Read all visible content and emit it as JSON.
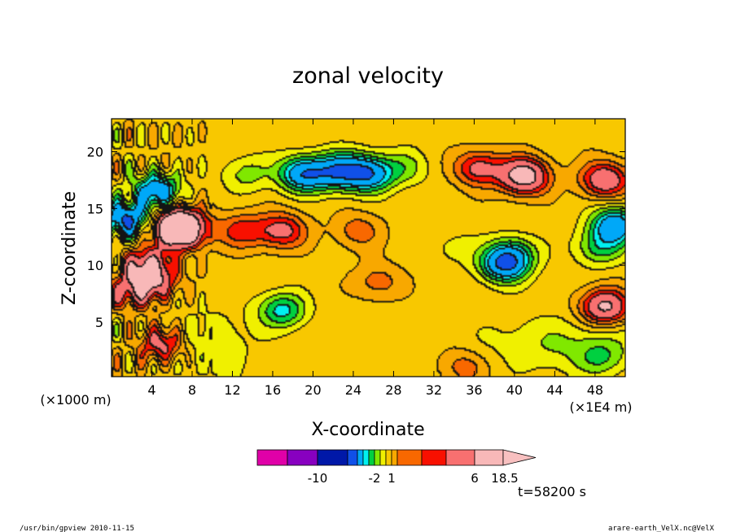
{
  "chart_data": {
    "type": "heatmap",
    "title": "zonal velocity",
    "xlabel": "X-coordinate",
    "ylabel": "Z-coordinate",
    "x_unit_left": "(×1000 m)",
    "x_unit_right": "(×1E4 m)",
    "xlim": [
      0,
      51
    ],
    "ylim": [
      0.2,
      22.9
    ],
    "x_ticks": [
      "4",
      "8",
      "12",
      "16",
      "20",
      "24",
      "28",
      "32",
      "36",
      "40",
      "44",
      "48"
    ],
    "x_tick_values": [
      4,
      8,
      12,
      16,
      20,
      24,
      28,
      32,
      36,
      40,
      44,
      48
    ],
    "y_ticks": [
      "5",
      "10",
      "15",
      "20"
    ],
    "y_tick_values": [
      5,
      10,
      15,
      20
    ],
    "colorbar": {
      "levels": [
        -14,
        -12,
        -10,
        -8,
        -6,
        -4,
        -3,
        -2,
        -1,
        0,
        1,
        2,
        3,
        4,
        6,
        8,
        10,
        12,
        14,
        16,
        18.5
      ],
      "colors": [
        "#e000a8",
        "#8800c0",
        "#0018a8",
        "#1050e8",
        "#00a8f8",
        "#00f0f0",
        "#00d040",
        "#80e800",
        "#f0f000",
        "#f8c800",
        "#f8a800",
        "#f86800",
        "#f81000",
        "#f87070",
        "#f8b8b8"
      ],
      "tick_labels": [
        "-10",
        "-2",
        "1",
        "6",
        "18.5"
      ],
      "tick_values": [
        -10,
        -2,
        1,
        6,
        18.5
      ]
    },
    "features": [
      {
        "x": 1.5,
        "z": 14.0,
        "value": -7
      },
      {
        "x": 4.5,
        "z": 16.5,
        "value": -6
      },
      {
        "x": 6.5,
        "z": 13.5,
        "value": 6
      },
      {
        "x": 7.0,
        "z": 13.0,
        "value": 7
      },
      {
        "x": 3.5,
        "z": 10.0,
        "value": 5
      },
      {
        "x": 2.0,
        "z": 7.5,
        "value": 3
      },
      {
        "x": 4.0,
        "z": 8.5,
        "value": 5
      },
      {
        "x": 5.0,
        "z": 3.0,
        "value": 4
      },
      {
        "x": 13.0,
        "z": 13.0,
        "value": 3
      },
      {
        "x": 17.0,
        "z": 13.0,
        "value": 4
      },
      {
        "x": 17.0,
        "z": 6.0,
        "value": -4
      },
      {
        "x": 19.0,
        "z": 18.0,
        "value": -6
      },
      {
        "x": 25.5,
        "z": 18.0,
        "value": -6
      },
      {
        "x": 23.0,
        "z": 18.5,
        "value": -3
      },
      {
        "x": 29.0,
        "z": 18.5,
        "value": -2
      },
      {
        "x": 13.5,
        "z": 18.0,
        "value": -2
      },
      {
        "x": 24.5,
        "z": 13.0,
        "value": 2
      },
      {
        "x": 41.0,
        "z": 17.8,
        "value": 7
      },
      {
        "x": 36.5,
        "z": 18.5,
        "value": 4
      },
      {
        "x": 49.0,
        "z": 17.5,
        "value": 5
      },
      {
        "x": 50.0,
        "z": 13.5,
        "value": -6
      },
      {
        "x": 48.5,
        "z": 11.5,
        "value": -3
      },
      {
        "x": 40.0,
        "z": 11.0,
        "value": -3
      },
      {
        "x": 39.0,
        "z": 10.0,
        "value": -6
      },
      {
        "x": 34.0,
        "z": 11.5,
        "value": -1
      },
      {
        "x": 49.0,
        "z": 6.3,
        "value": 6
      },
      {
        "x": 48.5,
        "z": 1.8,
        "value": -2
      },
      {
        "x": 35.0,
        "z": 1.0,
        "value": 2
      },
      {
        "x": 26.5,
        "z": 8.5,
        "value": 2
      },
      {
        "x": 22.0,
        "z": 18.0,
        "value": -3
      }
    ]
  },
  "time_label": "t=58200 s",
  "footer_left": "/usr/bin/gpview  2010-11-15",
  "footer_right": "arare-earth_VelX.nc@VelX"
}
